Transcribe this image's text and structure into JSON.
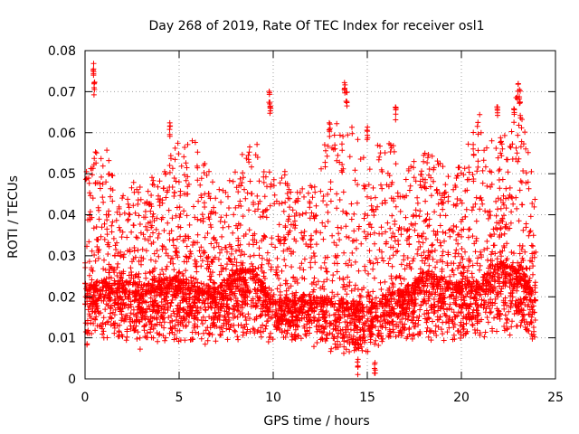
{
  "chart_data": {
    "type": "scatter",
    "title": "Day 268 of 2019, Rate Of TEC Index for receiver osl1",
    "xlabel": "GPS time / hours",
    "ylabel": "ROTI / TECUs",
    "xlim": [
      0,
      25
    ],
    "ylim": [
      0,
      0.08
    ],
    "x_ticks": [
      "0",
      "5",
      "10",
      "15",
      "20",
      "25"
    ],
    "y_ticks": [
      "0",
      "0.01",
      "0.02",
      "0.03",
      "0.04",
      "0.05",
      "0.06",
      "0.07",
      "0.08"
    ],
    "grid": true,
    "marker": "+",
    "color": "#ff0000",
    "point_count_estimate": 4600,
    "envelope": {
      "x": [
        0,
        1,
        2,
        3,
        4,
        5,
        6,
        7,
        8,
        9,
        10,
        11,
        12,
        13,
        14,
        15,
        16,
        17,
        18,
        19,
        20,
        21,
        22,
        23,
        24
      ],
      "typical_min": [
        0.008,
        0.009,
        0.009,
        0.006,
        0.009,
        0.008,
        0.008,
        0.009,
        0.009,
        0.009,
        0.009,
        0.009,
        0.008,
        0.006,
        0.005,
        0.006,
        0.009,
        0.009,
        0.009,
        0.009,
        0.009,
        0.01,
        0.01,
        0.01,
        0.008
      ],
      "typical_median": [
        0.02,
        0.022,
        0.022,
        0.02,
        0.022,
        0.022,
        0.021,
        0.02,
        0.024,
        0.024,
        0.018,
        0.018,
        0.018,
        0.018,
        0.017,
        0.016,
        0.019,
        0.02,
        0.024,
        0.022,
        0.021,
        0.022,
        0.026,
        0.024,
        0.02
      ],
      "typical_max": [
        0.052,
        0.058,
        0.046,
        0.05,
        0.05,
        0.06,
        0.058,
        0.046,
        0.052,
        0.06,
        0.055,
        0.048,
        0.05,
        0.06,
        0.068,
        0.052,
        0.062,
        0.05,
        0.058,
        0.052,
        0.052,
        0.067,
        0.058,
        0.07,
        0.044
      ]
    },
    "peaks": [
      {
        "x": 0.45,
        "y": 0.077
      },
      {
        "x": 0.5,
        "y": 0.073
      },
      {
        "x": 4.5,
        "y": 0.063
      },
      {
        "x": 9.8,
        "y": 0.071
      },
      {
        "x": 9.85,
        "y": 0.068
      },
      {
        "x": 13.0,
        "y": 0.064
      },
      {
        "x": 13.8,
        "y": 0.073
      },
      {
        "x": 13.9,
        "y": 0.07
      },
      {
        "x": 15.0,
        "y": 0.062
      },
      {
        "x": 16.5,
        "y": 0.067
      },
      {
        "x": 21.9,
        "y": 0.067
      },
      {
        "x": 23.0,
        "y": 0.072
      },
      {
        "x": 23.1,
        "y": 0.071
      },
      {
        "x": 22.8,
        "y": 0.066
      },
      {
        "x": 15.4,
        "y": 0.004
      },
      {
        "x": 14.5,
        "y": 0.005
      }
    ]
  }
}
